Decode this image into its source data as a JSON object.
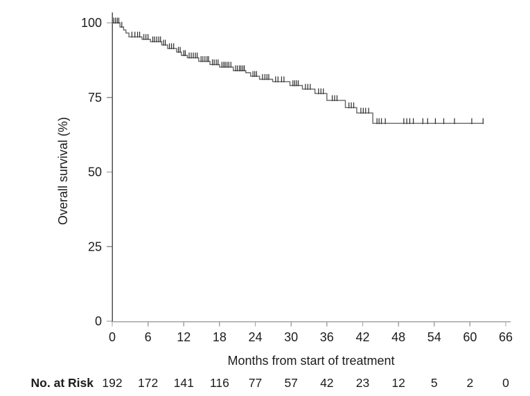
{
  "chart_data": {
    "type": "line",
    "subtype": "kaplan-meier-step",
    "title": "",
    "xlabel": "Months from start of treatment",
    "ylabel": "Overall survival (%)",
    "xlim": [
      0,
      66
    ],
    "ylim": [
      0,
      100
    ],
    "x_ticks": [
      0,
      6,
      12,
      18,
      24,
      30,
      36,
      42,
      48,
      54,
      60,
      66
    ],
    "y_ticks": [
      100,
      75,
      50,
      25,
      0
    ],
    "grid": false,
    "legend": false,
    "series": [
      {
        "name": "Overall survival",
        "steps": [
          [
            0,
            100
          ],
          [
            1.3,
            98.6
          ],
          [
            1.9,
            97.6
          ],
          [
            2.3,
            96.6
          ],
          [
            2.8,
            95.3
          ],
          [
            5.0,
            94.5
          ],
          [
            6.4,
            93.7
          ],
          [
            8.3,
            92.6
          ],
          [
            9.3,
            91.4
          ],
          [
            10.8,
            90.2
          ],
          [
            11.6,
            89.1
          ],
          [
            12.6,
            88.3
          ],
          [
            14.5,
            87.1
          ],
          [
            16.4,
            86.0
          ],
          [
            18.0,
            85.2
          ],
          [
            20.3,
            84.0
          ],
          [
            22.4,
            83.3
          ],
          [
            23.2,
            82.1
          ],
          [
            24.7,
            81.1
          ],
          [
            26.9,
            80.3
          ],
          [
            29.8,
            79.0
          ],
          [
            31.9,
            77.8
          ],
          [
            34.0,
            76.3
          ],
          [
            36.0,
            74.0
          ],
          [
            39.1,
            71.6
          ],
          [
            41.0,
            69.8
          ],
          [
            43.7,
            66.3
          ]
        ],
        "end_time": 62.2,
        "censor_times": [
          0.25,
          0.55,
          0.85,
          1.1,
          1.6,
          3.3,
          3.8,
          4.25,
          4.6,
          5.3,
          5.65,
          6.0,
          6.8,
          7.1,
          7.45,
          7.8,
          8.1,
          8.6,
          8.9,
          9.6,
          9.95,
          10.3,
          11.1,
          11.4,
          12.0,
          12.25,
          12.9,
          13.25,
          13.6,
          13.95,
          14.25,
          14.9,
          15.2,
          15.55,
          15.9,
          16.15,
          16.8,
          17.1,
          17.45,
          17.75,
          18.4,
          18.7,
          18.95,
          19.25,
          19.55,
          19.9,
          20.7,
          21.0,
          21.35,
          21.6,
          21.9,
          22.15,
          23.6,
          23.9,
          24.2,
          25.2,
          25.6,
          25.95,
          26.25,
          27.4,
          27.8,
          28.4,
          28.8,
          30.3,
          30.6,
          30.9,
          31.2,
          32.4,
          32.8,
          33.2,
          34.6,
          35.0,
          35.4,
          36.9,
          37.3,
          37.7,
          39.7,
          40.1,
          40.5,
          41.7,
          42.1,
          42.5,
          43.0,
          44.4,
          44.75,
          45.15,
          45.8,
          48.9,
          49.4,
          49.9,
          50.5,
          52.1,
          52.9,
          54.2,
          55.6,
          57.4,
          60.3,
          62.2
        ]
      }
    ],
    "risk_table": {
      "label": "No. at Risk",
      "times": [
        0,
        6,
        12,
        18,
        24,
        30,
        36,
        42,
        48,
        54,
        60,
        66
      ],
      "values": [
        192,
        172,
        141,
        116,
        77,
        57,
        42,
        23,
        12,
        5,
        2,
        0
      ]
    },
    "colors": {
      "curve": "#646464",
      "censor": "#303030",
      "y_axis": "#4f4f4f",
      "x_axis": "#a3a3a3",
      "tick": "#8f8f8f",
      "text": "#1c1c1c"
    }
  }
}
